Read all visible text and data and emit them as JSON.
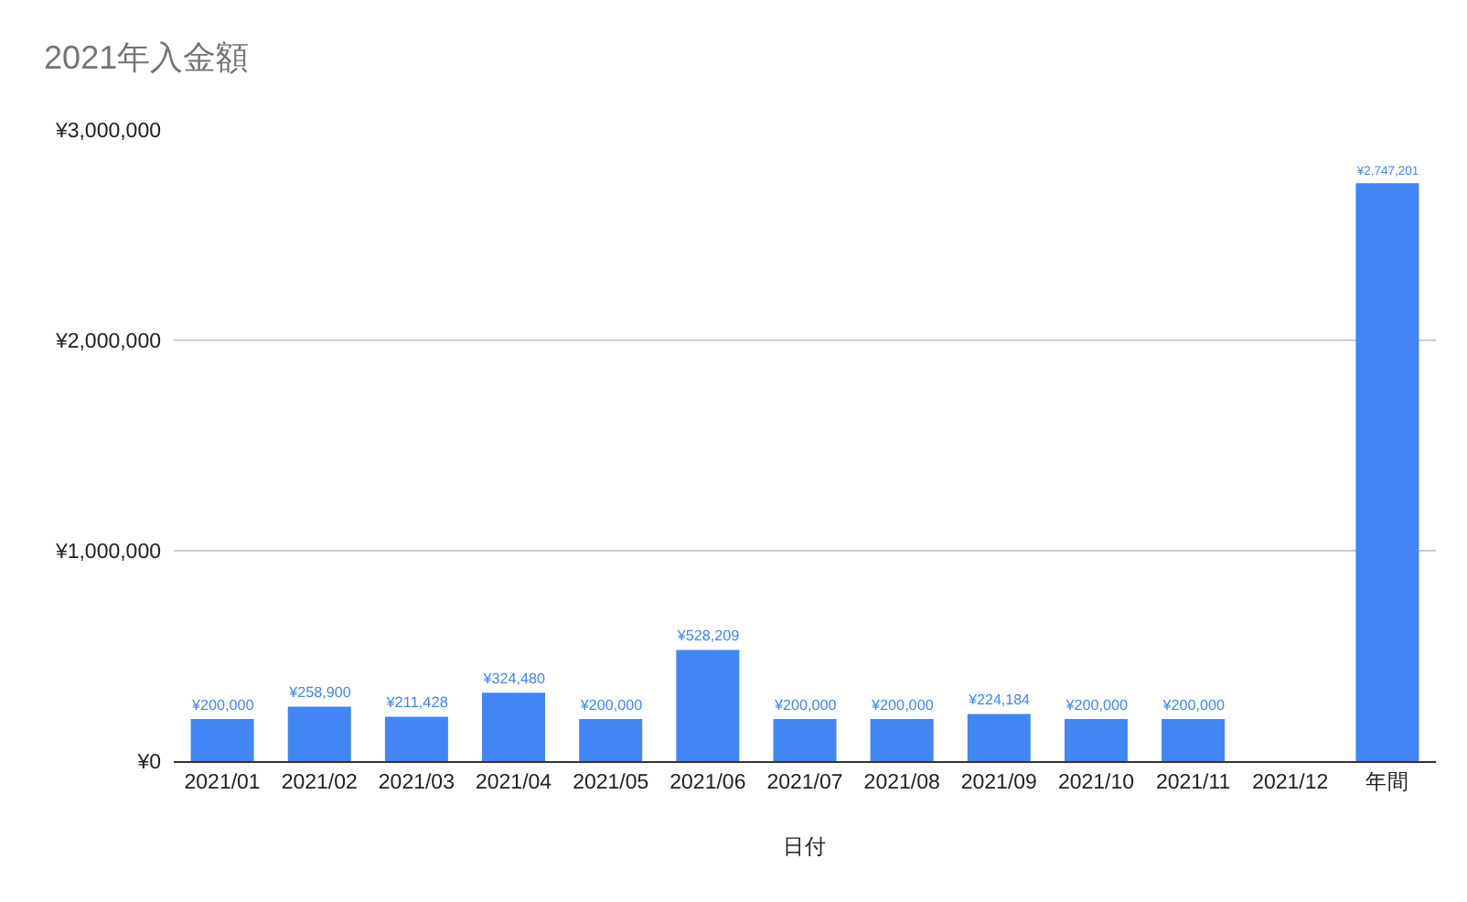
{
  "chart_data": {
    "type": "bar",
    "title": "2021年入金額",
    "xlabel": "日付",
    "categories": [
      "2021/01",
      "2021/02",
      "2021/03",
      "2021/04",
      "2021/05",
      "2021/06",
      "2021/07",
      "2021/08",
      "2021/09",
      "2021/10",
      "2021/11",
      "2021/12",
      "年間"
    ],
    "values": [
      200000,
      258900,
      211428,
      324480,
      200000,
      528209,
      200000,
      200000,
      224184,
      200000,
      200000,
      null,
      2747201
    ],
    "value_labels": [
      "¥200,000",
      "¥258,900",
      "¥211,428",
      "¥324,480",
      "¥200,000",
      "¥528,209",
      "¥200,000",
      "¥200,000",
      "¥224,184",
      "¥200,000",
      "¥200,000",
      null,
      "¥2,747,201"
    ],
    "color": "#4285f4",
    "ylim": [
      0,
      3000000
    ],
    "yticks": [
      {
        "value": 0,
        "label": "¥0"
      },
      {
        "value": 1000000,
        "label": "¥1,000,000"
      },
      {
        "value": 2000000,
        "label": "¥2,000,000"
      },
      {
        "value": 3000000,
        "label": "¥3,000,000"
      }
    ],
    "grid": "y",
    "legend": false
  }
}
